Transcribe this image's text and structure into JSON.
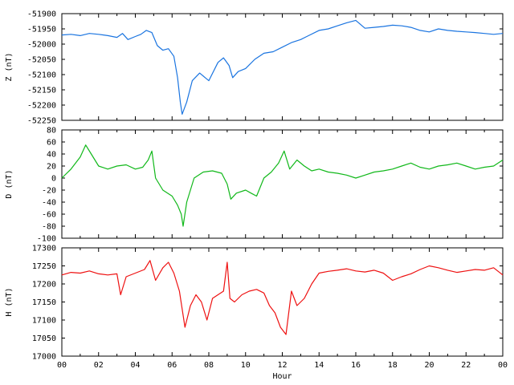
{
  "chart_data": [
    {
      "type": "line",
      "ylabel": "Z (nT)",
      "ylim": [
        -52250,
        -51900
      ],
      "yticks": [
        "-51900",
        "-51950",
        "-52000",
        "-52050",
        "-52100",
        "-52150",
        "-52200",
        "-52250"
      ],
      "series": [
        {
          "color": "#1a74e0",
          "x": [
            0,
            0.5,
            1,
            1.5,
            2,
            2.5,
            3,
            3.3,
            3.6,
            4,
            4.3,
            4.6,
            4.9,
            5.2,
            5.5,
            5.8,
            6.1,
            6.3,
            6.45,
            6.55,
            6.8,
            7.1,
            7.5,
            8,
            8.5,
            8.8,
            9.1,
            9.3,
            9.6,
            10,
            10.5,
            11,
            11.5,
            12,
            12.5,
            13,
            13.5,
            14,
            14.5,
            15,
            15.5,
            16,
            16.5,
            17,
            17.5,
            18,
            18.5,
            19,
            19.5,
            20,
            20.5,
            21,
            21.5,
            22,
            22.5,
            23,
            23.5,
            24
          ],
          "y": [
            -51970,
            -51968,
            -51972,
            -51965,
            -51968,
            -51972,
            -51978,
            -51965,
            -51985,
            -51975,
            -51968,
            -51955,
            -51962,
            -52005,
            -52020,
            -52015,
            -52040,
            -52110,
            -52190,
            -52230,
            -52190,
            -52120,
            -52095,
            -52120,
            -52060,
            -52045,
            -52070,
            -52110,
            -52090,
            -52080,
            -52050,
            -52030,
            -52025,
            -52010,
            -51995,
            -51985,
            -51970,
            -51955,
            -51950,
            -51940,
            -51930,
            -51922,
            -51948,
            -51945,
            -51942,
            -51938,
            -51940,
            -51945,
            -51955,
            -51960,
            -51950,
            -51955,
            -51958,
            -51960,
            -51962,
            -51965,
            -51968,
            -51965
          ]
        }
      ]
    },
    {
      "type": "line",
      "ylabel": "D (nT)",
      "ylim": [
        -100,
        80
      ],
      "yticks": [
        "80",
        "60",
        "40",
        "20",
        "0",
        "-20",
        "-40",
        "-60",
        "-80",
        "-100"
      ],
      "series": [
        {
          "color": "#11b81a",
          "x": [
            0,
            0.5,
            1,
            1.3,
            1.6,
            2,
            2.5,
            3,
            3.5,
            4,
            4.4,
            4.7,
            4.9,
            5.1,
            5.5,
            6,
            6.3,
            6.5,
            6.6,
            6.8,
            7.2,
            7.7,
            8.2,
            8.7,
            9,
            9.2,
            9.5,
            10,
            10.3,
            10.6,
            11,
            11.4,
            11.8,
            12.1,
            12.4,
            12.8,
            13.2,
            13.6,
            14,
            14.5,
            15,
            15.5,
            16,
            16.5,
            17,
            17.5,
            18,
            18.5,
            19,
            19.5,
            20,
            20.5,
            21,
            21.5,
            22,
            22.5,
            23,
            23.5,
            24
          ],
          "y": [
            0,
            15,
            35,
            55,
            40,
            20,
            15,
            20,
            22,
            15,
            18,
            30,
            45,
            0,
            -20,
            -30,
            -45,
            -60,
            -80,
            -40,
            0,
            10,
            12,
            8,
            -10,
            -35,
            -25,
            -20,
            -25,
            -30,
            0,
            10,
            25,
            45,
            15,
            30,
            20,
            12,
            15,
            10,
            8,
            5,
            0,
            5,
            10,
            12,
            15,
            20,
            25,
            18,
            15,
            20,
            22,
            25,
            20,
            15,
            18,
            20,
            30
          ]
        }
      ]
    },
    {
      "type": "line",
      "ylabel": "H (nT)",
      "xlabel": "Hour",
      "ylim": [
        17000,
        17300
      ],
      "yticks": [
        "17300",
        "17250",
        "17200",
        "17150",
        "17100",
        "17050",
        "17000"
      ],
      "xticks": [
        "00",
        "02",
        "04",
        "06",
        "08",
        "10",
        "12",
        "14",
        "16",
        "18",
        "20",
        "22",
        "00"
      ],
      "series": [
        {
          "color": "#ee1111",
          "x": [
            0,
            0.5,
            1,
            1.5,
            2,
            2.5,
            3,
            3.2,
            3.5,
            4,
            4.5,
            4.8,
            5.1,
            5.5,
            5.8,
            6.1,
            6.4,
            6.7,
            7,
            7.3,
            7.6,
            7.9,
            8.2,
            8.5,
            8.8,
            9.0,
            9.15,
            9.4,
            9.8,
            10.2,
            10.6,
            11,
            11.3,
            11.6,
            11.9,
            12.2,
            12.5,
            12.8,
            13.2,
            13.6,
            14,
            14.5,
            15,
            15.5,
            16,
            16.5,
            17,
            17.5,
            18,
            18.5,
            19,
            19.5,
            20,
            20.5,
            21,
            21.5,
            22,
            22.5,
            23,
            23.5,
            24
          ],
          "y": [
            17225,
            17232,
            17230,
            17236,
            17228,
            17225,
            17228,
            17170,
            17220,
            17230,
            17240,
            17265,
            17210,
            17245,
            17260,
            17230,
            17180,
            17080,
            17140,
            17170,
            17150,
            17100,
            17160,
            17170,
            17180,
            17260,
            17160,
            17150,
            17170,
            17180,
            17185,
            17175,
            17140,
            17120,
            17080,
            17060,
            17180,
            17140,
            17160,
            17200,
            17230,
            17235,
            17238,
            17242,
            17236,
            17233,
            17238,
            17230,
            17210,
            17220,
            17228,
            17240,
            17250,
            17245,
            17238,
            17232,
            17236,
            17240,
            17238,
            17245,
            17225
          ]
        }
      ]
    }
  ]
}
